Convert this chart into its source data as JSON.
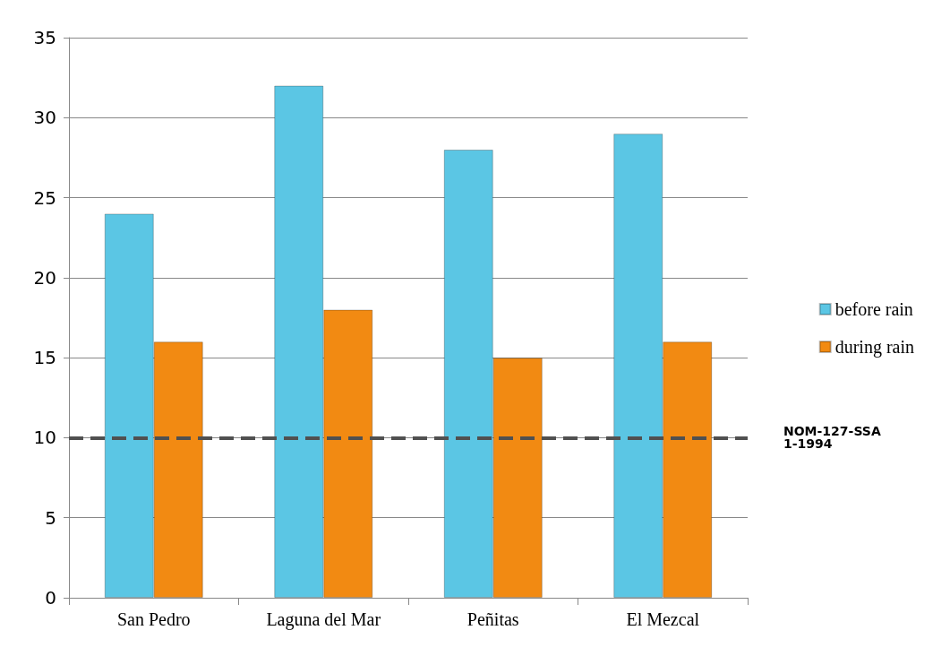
{
  "chart_data": {
    "type": "bar",
    "categories": [
      "San Pedro",
      "Laguna del Mar",
      "Peñitas",
      "El Mezcal"
    ],
    "series": [
      {
        "name": "before rain",
        "color": "#5bc6e4",
        "values": [
          24,
          32,
          28,
          29
        ]
      },
      {
        "name": "during rain",
        "color": "#f28a12",
        "values": [
          16,
          18,
          15,
          16
        ]
      }
    ],
    "ylim": [
      0,
      35
    ],
    "yticks": [
      0,
      5,
      10,
      15,
      20,
      25,
      30,
      35
    ],
    "grid": "y",
    "legend": "right",
    "ref_lines": [
      {
        "axis": "y",
        "value": 10,
        "label": "NOM-127-SSA1-1994",
        "color": "#505050",
        "line_style": "dashed"
      }
    ]
  }
}
